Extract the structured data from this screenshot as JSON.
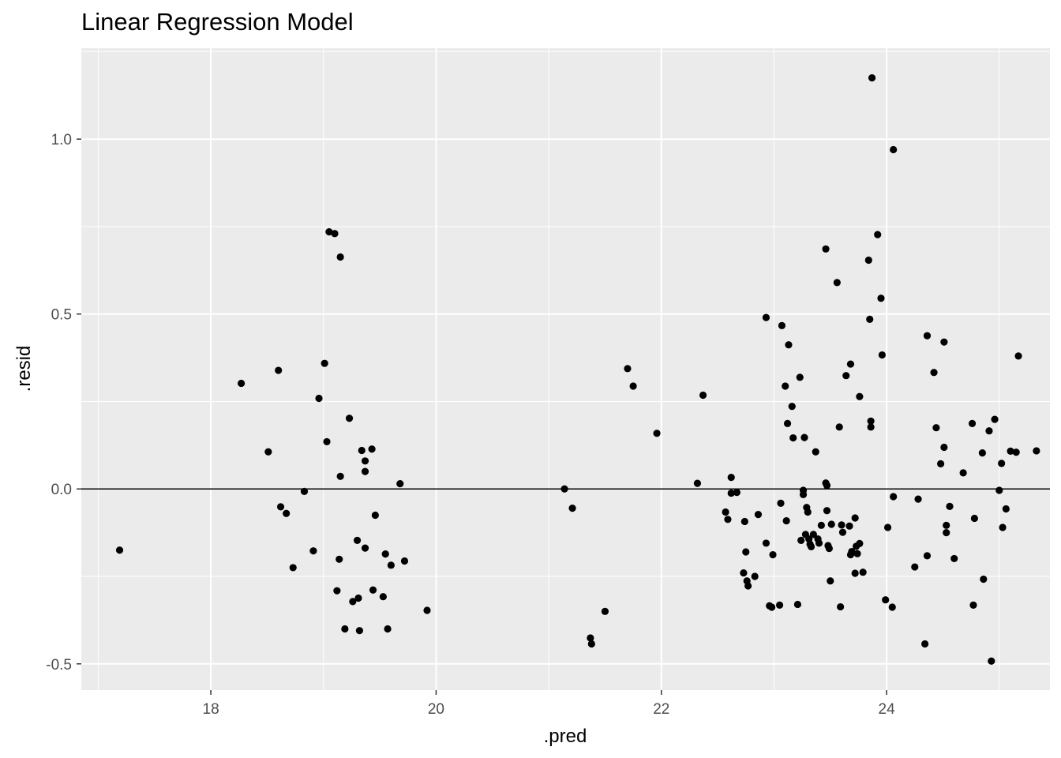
{
  "chart_data": {
    "type": "scatter",
    "title": "Linear Regression Model",
    "xlabel": ".pred",
    "ylabel": ".resid",
    "xlim": [
      16.85,
      25.45
    ],
    "ylim": [
      -0.575,
      1.26
    ],
    "x_ticks": [
      18,
      20,
      22,
      24
    ],
    "x_tick_labels": [
      "18",
      "20",
      "22",
      "24"
    ],
    "y_ticks": [
      -0.5,
      0.0,
      0.5,
      1.0
    ],
    "y_tick_labels": [
      "-0.5",
      "0.0",
      "0.5",
      "1.0"
    ],
    "grid": true,
    "hline_y": 0,
    "colors": {
      "panel": "#ebebeb",
      "grid": "#ffffff",
      "points": "#000000",
      "hline": "#000000"
    },
    "points": [
      [
        17.19,
        -0.175
      ],
      [
        18.27,
        0.302
      ],
      [
        18.51,
        0.106
      ],
      [
        18.6,
        0.339
      ],
      [
        18.62,
        -0.051
      ],
      [
        18.67,
        -0.07
      ],
      [
        18.73,
        -0.225
      ],
      [
        18.83,
        -0.007
      ],
      [
        18.91,
        -0.177
      ],
      [
        18.96,
        0.259
      ],
      [
        19.01,
        0.359
      ],
      [
        19.03,
        0.135
      ],
      [
        19.05,
        0.735
      ],
      [
        19.1,
        0.73
      ],
      [
        19.12,
        -0.291
      ],
      [
        19.14,
        -0.201
      ],
      [
        19.15,
        0.663
      ],
      [
        19.15,
        0.036
      ],
      [
        19.19,
        -0.4
      ],
      [
        19.23,
        0.202
      ],
      [
        19.26,
        -0.322
      ],
      [
        19.3,
        -0.147
      ],
      [
        19.31,
        -0.312
      ],
      [
        19.32,
        -0.405
      ],
      [
        19.34,
        0.11
      ],
      [
        19.37,
        0.08
      ],
      [
        19.37,
        -0.169
      ],
      [
        19.37,
        0.05
      ],
      [
        19.43,
        0.114
      ],
      [
        19.44,
        -0.289
      ],
      [
        19.46,
        -0.075
      ],
      [
        19.53,
        -0.308
      ],
      [
        19.55,
        -0.186
      ],
      [
        19.57,
        -0.4
      ],
      [
        19.6,
        -0.218
      ],
      [
        19.68,
        0.015
      ],
      [
        19.72,
        -0.206
      ],
      [
        19.92,
        -0.347
      ],
      [
        21.14,
        0.0
      ],
      [
        21.21,
        -0.055
      ],
      [
        21.37,
        -0.426
      ],
      [
        21.38,
        -0.443
      ],
      [
        21.5,
        -0.35
      ],
      [
        21.7,
        0.344
      ],
      [
        21.75,
        0.294
      ],
      [
        21.96,
        0.159
      ],
      [
        22.32,
        0.016
      ],
      [
        22.37,
        0.268
      ],
      [
        22.57,
        -0.066
      ],
      [
        22.59,
        -0.087
      ],
      [
        22.62,
        0.033
      ],
      [
        22.62,
        -0.012
      ],
      [
        22.67,
        -0.01
      ],
      [
        22.73,
        -0.24
      ],
      [
        22.74,
        -0.093
      ],
      [
        22.75,
        -0.18
      ],
      [
        22.76,
        -0.263
      ],
      [
        22.77,
        -0.277
      ],
      [
        22.83,
        -0.25
      ],
      [
        22.86,
        -0.073
      ],
      [
        22.93,
        -0.155
      ],
      [
        22.93,
        0.49
      ],
      [
        22.96,
        -0.334
      ],
      [
        22.98,
        -0.338
      ],
      [
        22.99,
        -0.188
      ],
      [
        23.05,
        -0.332
      ],
      [
        23.06,
        -0.041
      ],
      [
        23.07,
        0.467
      ],
      [
        23.1,
        0.294
      ],
      [
        23.11,
        -0.091
      ],
      [
        23.12,
        0.187
      ],
      [
        23.13,
        0.412
      ],
      [
        23.16,
        0.236
      ],
      [
        23.17,
        0.146
      ],
      [
        23.21,
        -0.33
      ],
      [
        23.23,
        0.319
      ],
      [
        23.24,
        -0.147
      ],
      [
        23.26,
        -0.004
      ],
      [
        23.26,
        -0.016
      ],
      [
        23.27,
        0.147
      ],
      [
        23.28,
        -0.13
      ],
      [
        23.29,
        -0.053
      ],
      [
        23.3,
        -0.066
      ],
      [
        23.31,
        -0.143
      ],
      [
        23.32,
        -0.158
      ],
      [
        23.33,
        -0.165
      ],
      [
        23.35,
        -0.13
      ],
      [
        23.37,
        0.106
      ],
      [
        23.39,
        -0.143
      ],
      [
        23.4,
        -0.155
      ],
      [
        23.42,
        -0.104
      ],
      [
        23.46,
        0.686
      ],
      [
        23.46,
        0.017
      ],
      [
        23.47,
        -0.062
      ],
      [
        23.47,
        0.01
      ],
      [
        23.48,
        -0.162
      ],
      [
        23.49,
        -0.17
      ],
      [
        23.5,
        -0.263
      ],
      [
        23.51,
        -0.101
      ],
      [
        23.56,
        0.59
      ],
      [
        23.58,
        0.177
      ],
      [
        23.59,
        -0.337
      ],
      [
        23.6,
        -0.103
      ],
      [
        23.61,
        -0.124
      ],
      [
        23.64,
        0.324
      ],
      [
        23.67,
        -0.106
      ],
      [
        23.68,
        0.357
      ],
      [
        23.68,
        -0.188
      ],
      [
        23.69,
        -0.179
      ],
      [
        23.72,
        -0.083
      ],
      [
        23.72,
        -0.241
      ],
      [
        23.73,
        -0.164
      ],
      [
        23.74,
        -0.185
      ],
      [
        23.76,
        0.264
      ],
      [
        23.76,
        -0.156
      ],
      [
        23.79,
        -0.238
      ],
      [
        23.84,
        0.654
      ],
      [
        23.85,
        0.485
      ],
      [
        23.86,
        0.194
      ],
      [
        23.86,
        0.177
      ],
      [
        23.87,
        1.175
      ],
      [
        23.92,
        0.727
      ],
      [
        23.95,
        0.545
      ],
      [
        23.96,
        0.383
      ],
      [
        23.99,
        -0.317
      ],
      [
        24.01,
        -0.11
      ],
      [
        24.05,
        -0.338
      ],
      [
        24.06,
        -0.022
      ],
      [
        24.06,
        0.97
      ],
      [
        24.25,
        -0.223
      ],
      [
        24.28,
        -0.029
      ],
      [
        24.34,
        -0.443
      ],
      [
        24.36,
        -0.191
      ],
      [
        24.36,
        0.438
      ],
      [
        24.42,
        0.333
      ],
      [
        24.44,
        0.175
      ],
      [
        24.48,
        0.072
      ],
      [
        24.51,
        0.42
      ],
      [
        24.51,
        0.119
      ],
      [
        24.53,
        -0.125
      ],
      [
        24.53,
        -0.104
      ],
      [
        24.56,
        -0.05
      ],
      [
        24.6,
        -0.199
      ],
      [
        24.68,
        0.046
      ],
      [
        24.76,
        0.187
      ],
      [
        24.77,
        -0.332
      ],
      [
        24.78,
        -0.084
      ],
      [
        24.85,
        0.103
      ],
      [
        24.86,
        -0.258
      ],
      [
        24.91,
        0.166
      ],
      [
        24.93,
        -0.492
      ],
      [
        24.96,
        0.199
      ],
      [
        25.0,
        -0.004
      ],
      [
        25.02,
        0.073
      ],
      [
        25.03,
        -0.11
      ],
      [
        25.06,
        -0.057
      ],
      [
        25.1,
        0.108
      ],
      [
        25.15,
        0.105
      ],
      [
        25.17,
        0.38
      ],
      [
        25.33,
        0.109
      ]
    ]
  }
}
